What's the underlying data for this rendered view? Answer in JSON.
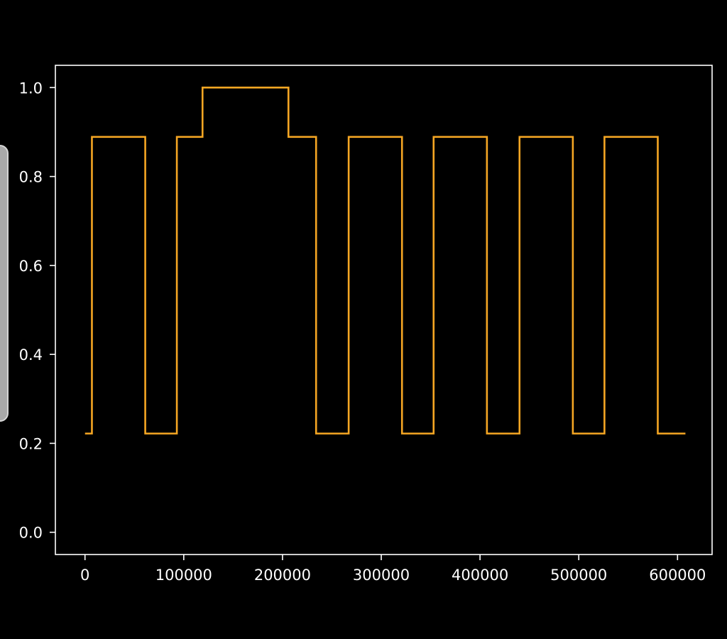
{
  "colors": {
    "background": "#000000",
    "axes": "#ffffff",
    "line": "#f5a623",
    "side_tab": "#a9a9a9"
  },
  "chart_data": {
    "type": "line",
    "drawstyle": "steps-post",
    "title": "",
    "xlabel": "",
    "ylabel": "",
    "xlim": [
      -30000,
      635000
    ],
    "ylim": [
      -0.05,
      1.05
    ],
    "xticks": [
      0,
      100000,
      200000,
      300000,
      400000,
      500000,
      600000
    ],
    "xtick_labels": [
      "0",
      "100000",
      "200000",
      "300000",
      "400000",
      "500000",
      "600000"
    ],
    "yticks": [
      0.0,
      0.2,
      0.4,
      0.6,
      0.8,
      1.0
    ],
    "ytick_labels": [
      "0.0",
      "0.2",
      "0.4",
      "0.6",
      "0.8",
      "1.0"
    ],
    "grid": false,
    "legend": "none",
    "series": [
      {
        "x": [
          0,
          7000,
          61000,
          93000,
          119000,
          206000,
          234000,
          267000,
          321000,
          353000,
          407000,
          440000,
          494000,
          526000,
          580000,
          608000
        ],
        "y": [
          0.222,
          0.889,
          0.222,
          0.889,
          1.0,
          0.889,
          0.222,
          0.889,
          0.222,
          0.889,
          0.222,
          0.889,
          0.222,
          0.889,
          0.222,
          0.222
        ]
      }
    ]
  }
}
